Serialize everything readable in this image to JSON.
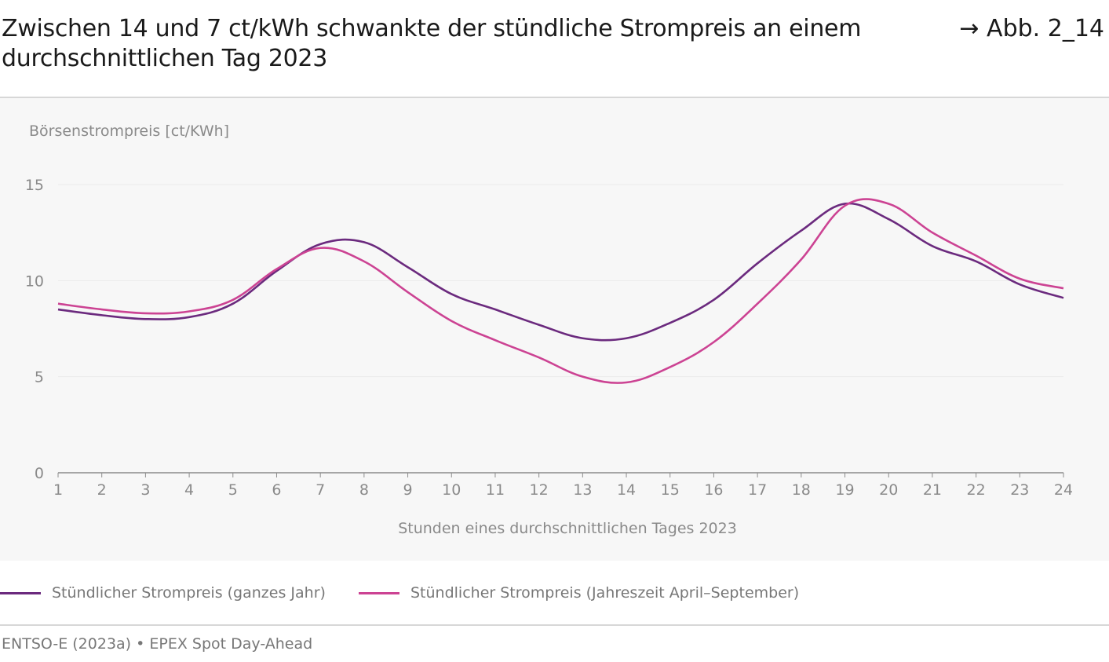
{
  "header": {
    "title": "Zwischen 14 und 7 ct/kWh schwankte der stündliche Strompreis an einem durchschnittlichen Tag 2023",
    "figure_ref": "→ Abb. 2_14"
  },
  "chart_data": {
    "type": "line",
    "ylabel": "Börsenstrompreis [ct/KWh]",
    "xlabel": "Stunden eines durchschnittlichen Tages 2023",
    "ylim": [
      0,
      15
    ],
    "yticks": [
      0,
      5,
      10,
      15
    ],
    "x": [
      1,
      2,
      3,
      4,
      5,
      6,
      7,
      8,
      9,
      10,
      11,
      12,
      13,
      14,
      15,
      16,
      17,
      18,
      19,
      20,
      21,
      22,
      23,
      24
    ],
    "grid": "horizontal",
    "series": [
      {
        "name": "Stündlicher Strompreis (ganzes Jahr)",
        "color": "#6b2a7e",
        "values": [
          8.5,
          8.2,
          8.0,
          8.1,
          8.8,
          10.5,
          11.9,
          12.0,
          10.7,
          9.3,
          8.5,
          7.7,
          7.0,
          7.0,
          7.8,
          9.0,
          10.9,
          12.6,
          14.0,
          13.2,
          11.8,
          11.0,
          9.8,
          9.1
        ]
      },
      {
        "name": "Stündlicher Strompreis (Jahreszeit April–September)",
        "color": "#cc4393",
        "values": [
          8.8,
          8.5,
          8.3,
          8.4,
          9.0,
          10.6,
          11.7,
          11.0,
          9.4,
          7.9,
          6.9,
          6.0,
          5.0,
          4.7,
          5.5,
          6.8,
          8.8,
          11.1,
          13.9,
          14.0,
          12.5,
          11.3,
          10.1,
          9.6
        ]
      }
    ],
    "legend": "bottom-left"
  },
  "footer": {
    "source": "ENTSO-E (2023a) • EPEX Spot Day-Ahead"
  }
}
